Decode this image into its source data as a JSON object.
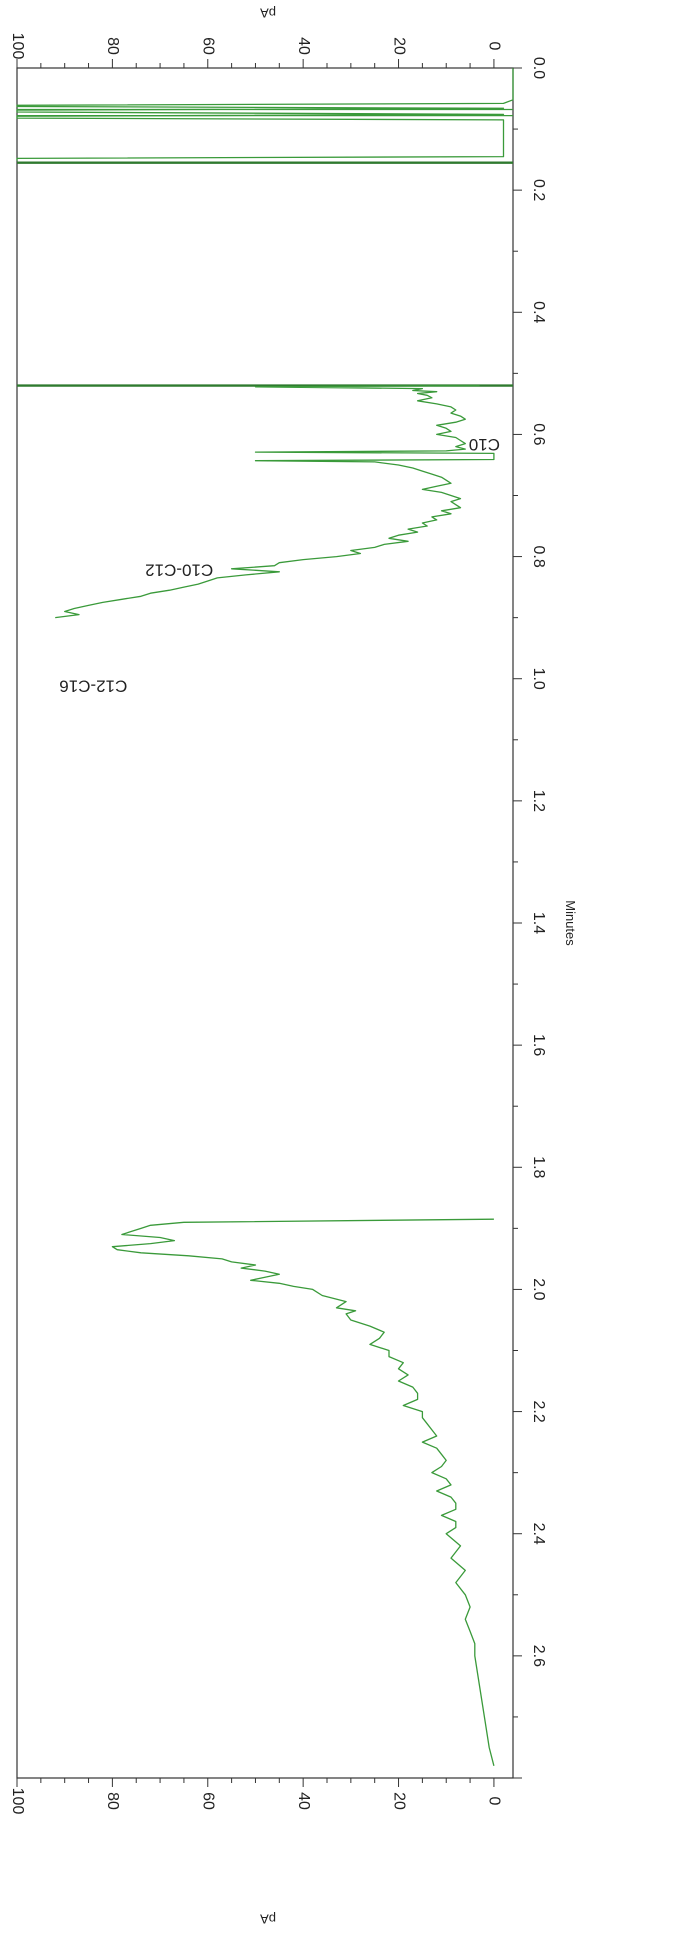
{
  "chart_data": {
    "type": "line",
    "orientation": "rotated-90-clockwise",
    "xlabel": "Minutes",
    "ylabel": "pA",
    "xlim": [
      0,
      2.8
    ],
    "ylim": [
      -4,
      100
    ],
    "x_ticks": [
      "0.0",
      "0.2",
      "0.4",
      "0.6",
      "0.8",
      "1.0",
      "1.2",
      "1.4",
      "1.6",
      "1.8",
      "2.0",
      "2.2",
      "2.4",
      "2.6"
    ],
    "y_ticks": [
      "0",
      "20",
      "40",
      "60",
      "80",
      "100"
    ],
    "grid": false,
    "legend": "none",
    "series_color": "#3a9a3a",
    "markers": [
      {
        "x": 0.52,
        "kind": "solid"
      },
      {
        "x": 0.155,
        "kind": "solid"
      },
      {
        "x": 0.078,
        "kind": "thin"
      },
      {
        "x": 0.068,
        "kind": "thin"
      }
    ],
    "annotations": [
      {
        "text": "C10",
        "x": 0.615,
        "y": 2
      },
      {
        "text": "C10-C12",
        "x": 0.82,
        "y": 66
      },
      {
        "text": "C12-C16",
        "x": 1.01,
        "y": 84
      }
    ],
    "series": [
      {
        "x": [
          0.0,
          0.045,
          0.052,
          0.058,
          0.061,
          0.063,
          0.066,
          0.069,
          0.072,
          0.076,
          0.079,
          0.082,
          0.085,
          0.145,
          0.148,
          0.152
        ],
        "y": [
          -4,
          -4,
          -4,
          -2,
          100,
          100,
          -2,
          100,
          100,
          -2,
          100,
          100,
          -2,
          -2,
          100,
          100
        ]
      },
      {
        "x": [
          0.52,
          0.522,
          0.525,
          0.528,
          0.53,
          0.533,
          0.536,
          0.54,
          0.545,
          0.55,
          0.555,
          0.56,
          0.565,
          0.57,
          0.575,
          0.58,
          0.585,
          0.59,
          0.595,
          0.6,
          0.605,
          0.61,
          0.615,
          0.62,
          0.624,
          0.627,
          0.629,
          0.631,
          0.635,
          0.638,
          0.641,
          0.643,
          0.645,
          0.65,
          0.655,
          0.66,
          0.665,
          0.67,
          0.675,
          0.68,
          0.685,
          0.69,
          0.695,
          0.7,
          0.705,
          0.71,
          0.715,
          0.72,
          0.725,
          0.73,
          0.735,
          0.74,
          0.745,
          0.75,
          0.755,
          0.76,
          0.765,
          0.77,
          0.775,
          0.78,
          0.785,
          0.79,
          0.795,
          0.8,
          0.805,
          0.81,
          0.815,
          0.82,
          0.825,
          0.83,
          0.835,
          0.84,
          0.845,
          0.85,
          0.855,
          0.86,
          0.865,
          0.87,
          0.875,
          0.88,
          0.885,
          0.89,
          0.895,
          0.9
        ],
        "y": [
          3,
          50,
          15,
          17,
          12,
          16,
          14,
          13,
          16,
          12,
          9,
          8,
          9,
          7,
          6,
          8,
          12,
          10,
          9,
          12,
          8,
          7,
          6,
          8,
          6,
          10,
          50,
          0,
          0,
          0,
          0,
          50,
          25,
          20,
          17,
          15,
          13,
          11,
          10,
          9,
          12,
          15,
          11,
          9,
          7,
          9,
          8,
          7,
          11,
          9,
          13,
          12,
          15,
          14,
          18,
          16,
          20,
          22,
          18,
          23,
          25,
          30,
          28,
          33,
          40,
          45,
          46,
          55,
          45,
          52,
          58,
          60,
          62,
          65,
          68,
          72,
          74,
          78,
          82,
          85,
          88,
          90,
          87,
          92
        ]
      },
      {
        "x": [
          1.885,
          1.89,
          1.895,
          1.9,
          1.905,
          1.91,
          1.915,
          1.92,
          1.925,
          1.93,
          1.935,
          1.94,
          1.945,
          1.95,
          1.955,
          1.96,
          1.965,
          1.97,
          1.975,
          1.98,
          1.985,
          1.99,
          1.995,
          2.0,
          2.01,
          2.02,
          2.03,
          2.035,
          2.04,
          2.05,
          2.06,
          2.07,
          2.08,
          2.09,
          2.1,
          2.11,
          2.12,
          2.13,
          2.14,
          2.15,
          2.16,
          2.17,
          2.18,
          2.19,
          2.2,
          2.21,
          2.22,
          2.23,
          2.24,
          2.25,
          2.26,
          2.27,
          2.28,
          2.29,
          2.3,
          2.31,
          2.32,
          2.33,
          2.34,
          2.35,
          2.36,
          2.37,
          2.38,
          2.39,
          2.4,
          2.42,
          2.44,
          2.46,
          2.48,
          2.5,
          2.52,
          2.54,
          2.56,
          2.58,
          2.6,
          2.65,
          2.7,
          2.75,
          2.78
        ],
        "y": [
          0,
          65,
          72,
          74,
          76,
          78,
          70,
          67,
          72,
          80,
          79,
          74,
          64,
          57,
          55,
          50,
          53,
          48,
          45,
          48,
          51,
          45,
          42,
          38,
          36,
          31,
          33,
          29,
          31,
          30,
          26,
          23,
          24,
          26,
          22,
          22,
          19,
          20,
          18,
          20,
          17,
          16,
          16,
          19,
          15,
          15,
          14,
          13,
          12,
          15,
          12,
          11,
          10,
          11,
          13,
          10,
          9,
          12,
          9,
          8,
          8,
          11,
          8,
          8,
          10,
          7,
          9,
          6,
          8,
          6,
          5,
          6,
          5,
          4,
          4,
          3,
          2,
          1,
          0
        ]
      }
    ]
  }
}
